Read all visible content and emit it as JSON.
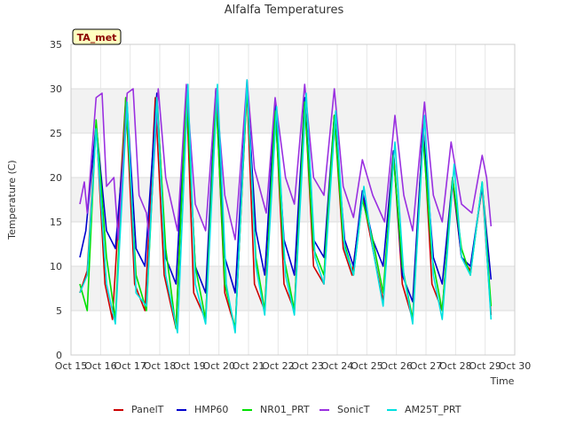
{
  "chart_data": {
    "type": "line",
    "title": "Alfalfa Temperatures",
    "xlabel": "Time",
    "ylabel": "Temperature (C)",
    "xlim": [
      15,
      30
    ],
    "ylim": [
      0,
      35
    ],
    "x_ticks": [
      15,
      16,
      17,
      18,
      19,
      20,
      21,
      22,
      23,
      24,
      25,
      26,
      27,
      28,
      29,
      30
    ],
    "x_tick_labels": [
      "Oct 15",
      "Oct 16",
      "Oct 17",
      "Oct 18",
      "Oct 19",
      "Oct 20",
      "Oct 21",
      "Oct 22",
      "Oct 23",
      "Oct 24",
      "Oct 25",
      "Oct 26",
      "Oct 27",
      "Oct 28",
      "Oct 29",
      "Oct 30"
    ],
    "y_ticks": [
      0,
      5,
      10,
      15,
      20,
      25,
      30,
      35
    ],
    "y_tick_labels": [
      "0",
      "5",
      "10",
      "15",
      "20",
      "25",
      "30",
      "35"
    ],
    "grid": true,
    "legend_position": "bottom",
    "annotation": "TA_met",
    "series": [
      {
        "name": "PanelT",
        "color": "#cc0000",
        "points": [
          [
            15.3,
            7
          ],
          [
            15.55,
            9.5
          ],
          [
            15.85,
            26
          ],
          [
            16.15,
            8
          ],
          [
            16.4,
            4
          ],
          [
            16.85,
            29
          ],
          [
            17.15,
            8
          ],
          [
            17.5,
            5
          ],
          [
            17.85,
            29
          ],
          [
            18.15,
            9
          ],
          [
            18.55,
            3
          ],
          [
            18.9,
            30
          ],
          [
            19.15,
            7
          ],
          [
            19.55,
            4
          ],
          [
            19.9,
            30
          ],
          [
            20.2,
            7
          ],
          [
            20.55,
            3
          ],
          [
            20.95,
            30
          ],
          [
            21.2,
            8
          ],
          [
            21.55,
            5
          ],
          [
            21.9,
            28.5
          ],
          [
            22.2,
            8
          ],
          [
            22.55,
            5
          ],
          [
            22.9,
            29
          ],
          [
            23.2,
            10
          ],
          [
            23.55,
            8
          ],
          [
            23.9,
            27
          ],
          [
            24.2,
            12
          ],
          [
            24.5,
            9
          ],
          [
            24.85,
            18
          ],
          [
            25.2,
            12
          ],
          [
            25.55,
            6
          ],
          [
            25.9,
            23
          ],
          [
            26.2,
            8
          ],
          [
            26.55,
            4
          ],
          [
            26.9,
            26
          ],
          [
            27.2,
            8
          ],
          [
            27.55,
            5
          ],
          [
            27.9,
            19.5
          ],
          [
            28.2,
            11
          ],
          [
            28.5,
            9.5
          ],
          [
            28.9,
            19
          ],
          [
            29.2,
            4.5
          ]
        ]
      },
      {
        "name": "HMP60",
        "color": "#0000cc",
        "points": [
          [
            15.3,
            11
          ],
          [
            15.5,
            14
          ],
          [
            15.85,
            26
          ],
          [
            16.2,
            14
          ],
          [
            16.5,
            12
          ],
          [
            16.9,
            28
          ],
          [
            17.2,
            12
          ],
          [
            17.5,
            10
          ],
          [
            17.9,
            29.5
          ],
          [
            18.2,
            11
          ],
          [
            18.55,
            8
          ],
          [
            18.9,
            30
          ],
          [
            19.2,
            10
          ],
          [
            19.55,
            7
          ],
          [
            19.9,
            30
          ],
          [
            20.2,
            11
          ],
          [
            20.55,
            7
          ],
          [
            20.95,
            30.5
          ],
          [
            21.25,
            14
          ],
          [
            21.55,
            9
          ],
          [
            21.9,
            28.5
          ],
          [
            22.2,
            13
          ],
          [
            22.55,
            9
          ],
          [
            22.9,
            29
          ],
          [
            23.2,
            13
          ],
          [
            23.55,
            11
          ],
          [
            23.9,
            27
          ],
          [
            24.25,
            13
          ],
          [
            24.55,
            10
          ],
          [
            24.85,
            18.5
          ],
          [
            25.2,
            13
          ],
          [
            25.55,
            10
          ],
          [
            25.9,
            23
          ],
          [
            26.2,
            9
          ],
          [
            26.55,
            6
          ],
          [
            26.9,
            25.5
          ],
          [
            27.25,
            11
          ],
          [
            27.55,
            8
          ],
          [
            27.9,
            20
          ],
          [
            28.2,
            11
          ],
          [
            28.5,
            10
          ],
          [
            28.9,
            19
          ],
          [
            29.2,
            8.5
          ]
        ]
      },
      {
        "name": "NR01_PRT",
        "color": "#00e000",
        "points": [
          [
            15.3,
            8
          ],
          [
            15.55,
            5
          ],
          [
            15.85,
            26.5
          ],
          [
            16.2,
            11
          ],
          [
            16.5,
            4
          ],
          [
            16.85,
            29
          ],
          [
            17.2,
            9
          ],
          [
            17.55,
            5
          ],
          [
            17.9,
            29
          ],
          [
            18.2,
            12
          ],
          [
            18.55,
            3
          ],
          [
            18.9,
            30
          ],
          [
            19.2,
            10
          ],
          [
            19.55,
            4
          ],
          [
            19.9,
            29.5
          ],
          [
            20.2,
            8
          ],
          [
            20.55,
            3
          ],
          [
            20.95,
            30
          ],
          [
            21.25,
            11
          ],
          [
            21.55,
            5
          ],
          [
            21.9,
            27.5
          ],
          [
            22.2,
            11
          ],
          [
            22.55,
            5
          ],
          [
            22.9,
            28.5
          ],
          [
            23.2,
            12
          ],
          [
            23.55,
            9
          ],
          [
            23.9,
            27
          ],
          [
            24.2,
            13
          ],
          [
            24.55,
            9
          ],
          [
            24.85,
            17.5
          ],
          [
            25.2,
            13
          ],
          [
            25.55,
            7
          ],
          [
            25.9,
            22.5
          ],
          [
            26.2,
            10
          ],
          [
            26.55,
            4
          ],
          [
            26.9,
            24.5
          ],
          [
            27.2,
            11
          ],
          [
            27.55,
            5
          ],
          [
            27.9,
            20
          ],
          [
            28.2,
            12
          ],
          [
            28.5,
            9
          ],
          [
            28.9,
            19.5
          ],
          [
            29.2,
            5.5
          ]
        ]
      },
      {
        "name": "SonicT",
        "color": "#9a30e0",
        "points": [
          [
            15.3,
            17
          ],
          [
            15.45,
            19.5
          ],
          [
            15.55,
            16
          ],
          [
            15.85,
            29
          ],
          [
            16.05,
            29.5
          ],
          [
            16.2,
            19
          ],
          [
            16.45,
            20
          ],
          [
            16.6,
            13
          ],
          [
            16.9,
            29.5
          ],
          [
            17.1,
            30
          ],
          [
            17.3,
            18
          ],
          [
            17.55,
            16
          ],
          [
            17.65,
            13
          ],
          [
            17.95,
            30
          ],
          [
            18.2,
            20
          ],
          [
            18.6,
            14
          ],
          [
            18.9,
            30.5
          ],
          [
            19.2,
            17
          ],
          [
            19.55,
            14
          ],
          [
            19.9,
            30
          ],
          [
            20.2,
            18
          ],
          [
            20.55,
            13
          ],
          [
            20.95,
            31
          ],
          [
            21.2,
            21
          ],
          [
            21.6,
            16
          ],
          [
            21.9,
            29
          ],
          [
            22.25,
            20
          ],
          [
            22.55,
            17
          ],
          [
            22.9,
            30.5
          ],
          [
            23.2,
            20
          ],
          [
            23.55,
            18
          ],
          [
            23.9,
            30
          ],
          [
            24.2,
            19
          ],
          [
            24.55,
            15.5
          ],
          [
            24.85,
            22
          ],
          [
            25.2,
            18
          ],
          [
            25.6,
            15
          ],
          [
            25.95,
            27
          ],
          [
            26.25,
            18
          ],
          [
            26.55,
            14
          ],
          [
            26.95,
            28.5
          ],
          [
            27.25,
            18
          ],
          [
            27.55,
            15
          ],
          [
            27.85,
            24
          ],
          [
            28.2,
            17
          ],
          [
            28.55,
            16
          ],
          [
            28.9,
            22.5
          ],
          [
            29.05,
            20
          ],
          [
            29.2,
            14.5
          ]
        ]
      },
      {
        "name": "AM25T_PRT",
        "color": "#00e0e0",
        "points": [
          [
            15.3,
            7
          ],
          [
            15.55,
            9
          ],
          [
            15.85,
            25.5
          ],
          [
            16.2,
            8
          ],
          [
            16.5,
            3.5
          ],
          [
            16.9,
            28.5
          ],
          [
            17.2,
            7
          ],
          [
            17.55,
            5.5
          ],
          [
            17.9,
            29
          ],
          [
            18.2,
            9
          ],
          [
            18.6,
            2.5
          ],
          [
            18.95,
            30.5
          ],
          [
            19.2,
            8
          ],
          [
            19.55,
            3.5
          ],
          [
            19.95,
            30.5
          ],
          [
            20.25,
            8
          ],
          [
            20.55,
            2.5
          ],
          [
            20.95,
            31
          ],
          [
            21.25,
            10
          ],
          [
            21.55,
            4.5
          ],
          [
            21.95,
            28
          ],
          [
            22.25,
            9
          ],
          [
            22.55,
            4.5
          ],
          [
            22.95,
            29.5
          ],
          [
            23.25,
            11
          ],
          [
            23.55,
            8
          ],
          [
            23.95,
            27.5
          ],
          [
            24.25,
            12
          ],
          [
            24.55,
            9
          ],
          [
            24.9,
            19
          ],
          [
            25.2,
            12
          ],
          [
            25.55,
            5.5
          ],
          [
            25.95,
            24
          ],
          [
            26.25,
            9
          ],
          [
            26.55,
            3.5
          ],
          [
            26.95,
            27
          ],
          [
            27.25,
            9
          ],
          [
            27.55,
            4
          ],
          [
            27.95,
            21.5
          ],
          [
            28.2,
            11
          ],
          [
            28.5,
            9
          ],
          [
            28.9,
            19.5
          ],
          [
            29.2,
            4
          ]
        ]
      }
    ]
  }
}
